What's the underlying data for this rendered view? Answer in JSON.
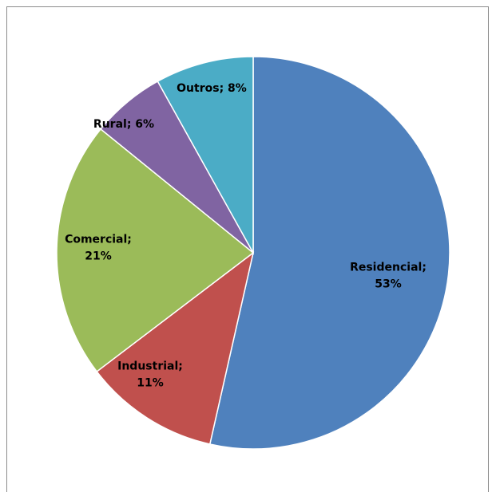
{
  "chart_data": {
    "type": "pie",
    "title": "",
    "slices": [
      {
        "label": "Residencial",
        "value": 53,
        "color": "#4f81bd",
        "label_lines": [
          "Residencial;",
          "53%"
        ]
      },
      {
        "label": "Industrial",
        "value": 11,
        "color": "#c0504d",
        "label_lines": [
          "Industrial;",
          "11%"
        ]
      },
      {
        "label": "Comercial",
        "value": 21,
        "color": "#9bbb59",
        "label_lines": [
          "Comercial;",
          "21%"
        ]
      },
      {
        "label": "Rural",
        "value": 6,
        "color": "#8064a2",
        "label_lines": [
          "Rural; 6%"
        ]
      },
      {
        "label": "Outros",
        "value": 8,
        "color": "#4bacc6",
        "label_lines": [
          "Outros; 8%"
        ]
      }
    ],
    "start_angle": "12 o'clock",
    "direction": "clockwise",
    "legend": "none",
    "data_labels": "category; percentage"
  }
}
